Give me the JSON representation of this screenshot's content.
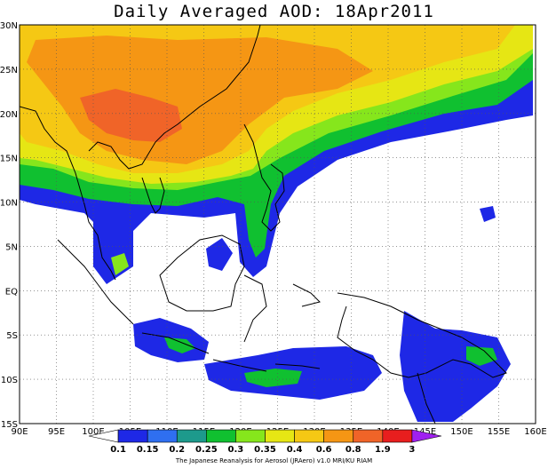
{
  "title": "Daily Averaged AOD: 18Apr2011",
  "credit": "The Japanese Reanalysis for Aerosol (JRAero) v1.0 MRI/KU RIAM",
  "map": {
    "lon_range": [
      90,
      160
    ],
    "lat_range": [
      -15,
      30
    ],
    "lon_labels": [
      "90E",
      "95E",
      "100E",
      "105E",
      "110E",
      "115E",
      "120E",
      "125E",
      "130E",
      "135E",
      "140E",
      "145E",
      "150E",
      "155E",
      "160E"
    ],
    "lat_labels": [
      "30N",
      "25N",
      "20N",
      "15N",
      "10N",
      "5N",
      "EQ",
      "5S",
      "10S",
      "15S"
    ],
    "grid": "dotted"
  },
  "colorbar": {
    "labels": [
      "0.1",
      "0.15",
      "0.2",
      "0.25",
      "0.3",
      "0.35",
      "0.4",
      "0.6",
      "0.8",
      "1.9",
      "3"
    ],
    "colors": [
      "#ffffff",
      "#1e28e6",
      "#2f6ff0",
      "#1d9a8c",
      "#10c030",
      "#86e61c",
      "#e6e614",
      "#f5c814",
      "#f59614",
      "#f06428",
      "#e81e1e",
      "#a020f0"
    ]
  }
}
